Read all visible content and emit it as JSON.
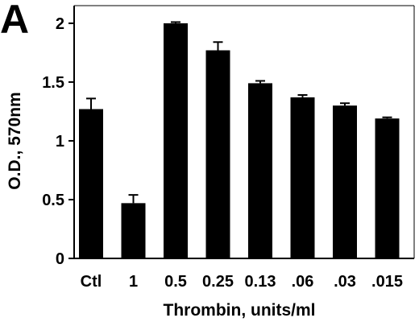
{
  "panel_label": "A",
  "chart_data": {
    "type": "bar",
    "title": "",
    "xlabel": "Thrombin, units/ml",
    "ylabel": "O.D., 570nm",
    "categories": [
      "Ctl",
      "1",
      "0.5",
      "0.25",
      "0.13",
      ".06",
      ".03",
      ".015"
    ],
    "values": [
      1.27,
      0.47,
      2.0,
      1.77,
      1.49,
      1.37,
      1.3,
      1.19
    ],
    "errors": [
      0.09,
      0.07,
      0.01,
      0.07,
      0.02,
      0.02,
      0.02,
      0.01
    ],
    "ylim": [
      0,
      2.15
    ],
    "yticks": [
      {
        "value": 0,
        "label": "0"
      },
      {
        "value": 0.5,
        "label": "0.5"
      },
      {
        "value": 1,
        "label": "1"
      },
      {
        "value": 1.5,
        "label": "1.5"
      },
      {
        "value": 2,
        "label": "2"
      }
    ],
    "grid": false,
    "colors": {
      "bar": "#000000",
      "axis": "#000000"
    }
  }
}
